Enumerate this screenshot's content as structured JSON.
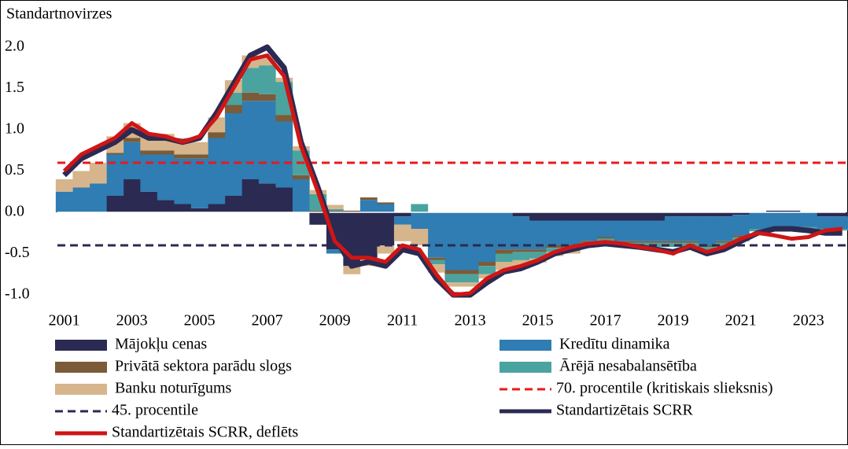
{
  "chart_data": {
    "type": "bar",
    "stacked": true,
    "ylabel": "Standartnovirzes",
    "x": [
      2001.0,
      2001.5,
      2002.0,
      2002.5,
      2003.0,
      2003.5,
      2004.0,
      2004.5,
      2005.0,
      2005.5,
      2006.0,
      2006.5,
      2007.0,
      2007.5,
      2008.0,
      2008.5,
      2009.0,
      2009.5,
      2010.0,
      2010.5,
      2011.0,
      2011.5,
      2012.0,
      2012.5,
      2013.0,
      2013.5,
      2014.0,
      2014.5,
      2015.0,
      2015.5,
      2016.0,
      2016.5,
      2017.0,
      2017.5,
      2018.0,
      2018.5,
      2019.0,
      2019.5,
      2020.0,
      2020.5,
      2021.0,
      2021.5,
      2022.0,
      2022.5,
      2023.0,
      2023.5,
      2024.0
    ],
    "series": [
      {
        "name": "Mājokļu cenas",
        "kind": "bar",
        "color": "#2b2a52",
        "values": [
          0,
          0,
          0,
          0.2,
          0.4,
          0.25,
          0.15,
          0.1,
          0.05,
          0.1,
          0.2,
          0.4,
          0.35,
          0.3,
          0,
          -0.15,
          -0.45,
          -0.65,
          -0.55,
          -0.4,
          -0.05,
          0,
          0,
          0,
          0,
          0,
          0,
          -0.05,
          -0.1,
          -0.1,
          -0.1,
          -0.1,
          -0.1,
          -0.1,
          -0.1,
          -0.1,
          -0.05,
          -0.05,
          -0.05,
          -0.05,
          -0.03,
          0,
          0.02,
          0.02,
          0,
          -0.05,
          -0.05
        ]
      },
      {
        "name": "Kredītu dinamika",
        "kind": "bar",
        "color": "#2f7db2",
        "values": [
          0.25,
          0.3,
          0.35,
          0.5,
          0.45,
          0.45,
          0.55,
          0.55,
          0.6,
          0.8,
          1.0,
          0.95,
          1.0,
          0.8,
          0.4,
          0,
          -0.05,
          0,
          0.15,
          0.1,
          -0.1,
          -0.2,
          -0.55,
          -0.7,
          -0.7,
          -0.6,
          -0.45,
          -0.4,
          -0.35,
          -0.3,
          -0.3,
          -0.25,
          -0.2,
          -0.25,
          -0.25,
          -0.25,
          -0.3,
          -0.3,
          -0.35,
          -0.3,
          -0.25,
          -0.2,
          -0.2,
          -0.18,
          -0.18,
          -0.15,
          -0.15
        ]
      },
      {
        "name": "Privātā sektora parādu slogs",
        "kind": "bar",
        "color": "#7b5b38",
        "values": [
          0,
          0,
          0,
          0.02,
          0.05,
          0.05,
          0.05,
          0.05,
          0.05,
          0.07,
          0.1,
          0.1,
          0.08,
          0.08,
          0.05,
          0.02,
          0.02,
          0.02,
          0.03,
          0.02,
          0,
          0,
          -0.03,
          -0.05,
          -0.05,
          -0.05,
          -0.05,
          -0.03,
          -0.03,
          -0.03,
          -0.02,
          -0.02,
          -0.02,
          -0.02,
          -0.02,
          -0.02,
          -0.02,
          -0.02,
          -0.02,
          -0.02,
          -0.02,
          0,
          0,
          0,
          0,
          0,
          0
        ]
      },
      {
        "name": "Ārējā nesabalansētība",
        "kind": "bar",
        "color": "#4aa39f",
        "values": [
          0,
          0,
          0,
          0,
          0,
          0,
          0,
          0,
          0,
          0,
          0.15,
          0.3,
          0.35,
          0.4,
          0.3,
          0.2,
          0.02,
          0,
          0,
          0,
          0,
          0.1,
          -0.05,
          -0.1,
          -0.1,
          -0.1,
          -0.1,
          -0.1,
          -0.08,
          -0.05,
          -0.05,
          -0.05,
          -0.05,
          -0.05,
          -0.05,
          -0.05,
          -0.05,
          -0.05,
          -0.05,
          -0.05,
          -0.05,
          -0.03,
          -0.02,
          -0.02,
          -0.02,
          -0.02,
          -0.02
        ]
      },
      {
        "name": "Banku noturīgums",
        "kind": "bar",
        "color": "#d6b58c",
        "values": [
          0.15,
          0.2,
          0.25,
          0.2,
          0.18,
          0.2,
          0.2,
          0.2,
          0.15,
          0.18,
          0.15,
          0.15,
          0.1,
          0.05,
          0.05,
          0.05,
          0.05,
          -0.1,
          -0.1,
          -0.1,
          -0.2,
          -0.2,
          -0.1,
          -0.05,
          -0.05,
          -0.05,
          -0.1,
          -0.1,
          -0.05,
          -0.05,
          -0.03,
          0,
          0,
          0,
          0,
          0,
          0,
          0,
          0,
          0,
          0,
          0,
          0,
          0,
          0,
          0,
          0
        ]
      },
      {
        "name": "Standartizētais SCRR",
        "kind": "line",
        "color": "#2b2a52",
        "values": [
          0.45,
          0.65,
          0.75,
          0.85,
          1.0,
          0.9,
          0.9,
          0.85,
          0.9,
          1.2,
          1.55,
          1.9,
          2.0,
          1.75,
          0.85,
          0.3,
          -0.3,
          -0.65,
          -0.6,
          -0.65,
          -0.45,
          -0.5,
          -0.8,
          -1.0,
          -1.0,
          -0.85,
          -0.72,
          -0.68,
          -0.6,
          -0.5,
          -0.45,
          -0.4,
          -0.38,
          -0.4,
          -0.42,
          -0.45,
          -0.48,
          -0.42,
          -0.5,
          -0.45,
          -0.35,
          -0.25,
          -0.2,
          -0.2,
          -0.22,
          -0.25,
          -0.25
        ]
      },
      {
        "name": "Standartizētais SCRR, deflēts",
        "kind": "line",
        "color": "#d01515",
        "values": [
          0.5,
          0.7,
          0.8,
          0.9,
          1.08,
          0.95,
          0.92,
          0.85,
          0.92,
          1.15,
          1.5,
          1.85,
          1.9,
          1.65,
          0.8,
          0.25,
          -0.35,
          -0.55,
          -0.55,
          -0.6,
          -0.4,
          -0.45,
          -0.75,
          -1.0,
          -0.98,
          -0.8,
          -0.7,
          -0.65,
          -0.58,
          -0.48,
          -0.42,
          -0.38,
          -0.36,
          -0.38,
          -0.42,
          -0.45,
          -0.5,
          -0.4,
          -0.48,
          -0.42,
          -0.32,
          -0.25,
          -0.28,
          -0.32,
          -0.3,
          -0.22,
          -0.2
        ]
      }
    ],
    "reference_lines": [
      {
        "name": "70. procentile (kritiskais slieksnis)",
        "value": 0.6,
        "color": "#e8191c"
      },
      {
        "name": "45. procentile",
        "value": -0.4,
        "color": "#2b2a52"
      }
    ],
    "xlim": [
      2000.8,
      2024.1
    ],
    "xticks": [
      2001,
      2003,
      2005,
      2007,
      2009,
      2011,
      2013,
      2015,
      2017,
      2019,
      2021,
      2023
    ],
    "ylim": [
      -1.0,
      2.0
    ],
    "yticks": [
      {
        "value": -1.0,
        "label": "-1.0"
      },
      {
        "value": -0.5,
        "label": "-0.5"
      },
      {
        "value": 0,
        "label": "0.0"
      },
      {
        "value": 0.5,
        "label": "0.5"
      },
      {
        "value": 1.0,
        "label": "1.0"
      },
      {
        "value": 1.5,
        "label": "1.5"
      },
      {
        "value": 2.0,
        "label": "2.0"
      }
    ],
    "legend": "bottom"
  }
}
